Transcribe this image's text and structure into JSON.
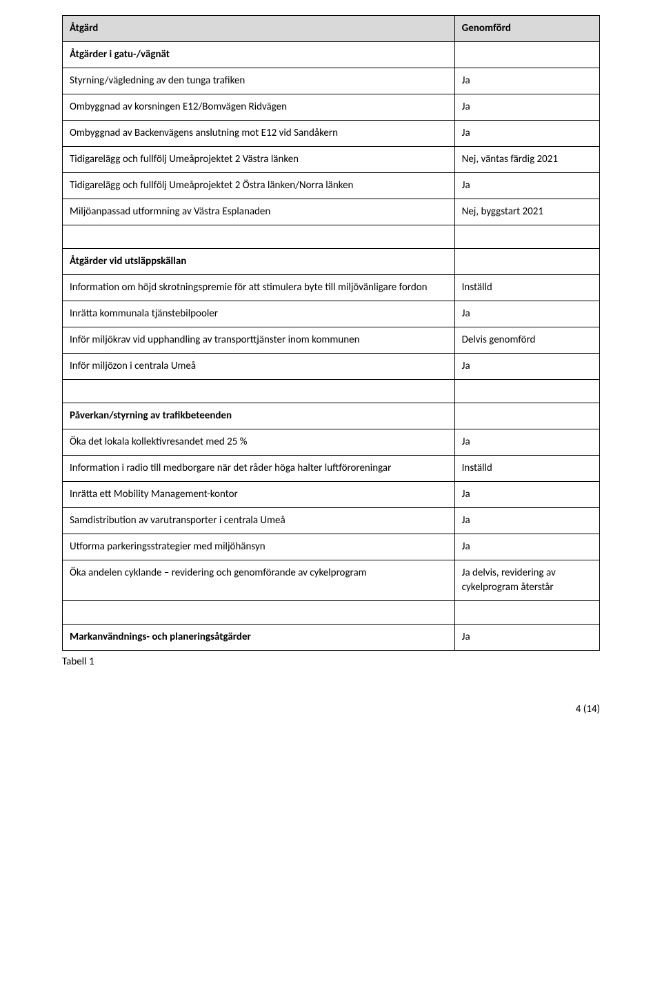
{
  "header": {
    "col1": "Åtgärd",
    "col2": "Genomförd"
  },
  "sections": [
    {
      "title": "Åtgärder i gatu-/vägnät",
      "rows": [
        {
          "label": "Styrning/vägledning av den tunga trafiken",
          "status": "Ja"
        },
        {
          "label": "Ombyggnad av korsningen E12/Bomvägen Ridvägen",
          "status": "Ja"
        },
        {
          "label": "Ombyggnad av Backenvägens anslutning mot E12 vid Sandåkern",
          "status": "Ja"
        },
        {
          "label": "Tidigarelägg och fullfölj Umeåprojektet 2 Västra länken",
          "status": "Nej, väntas färdig 2021"
        },
        {
          "label": "Tidigarelägg och fullfölj Umeåprojektet 2 Östra länken/Norra länken",
          "status": "Ja"
        },
        {
          "label": "Miljöanpassad utformning av Västra Esplanaden",
          "status": "Nej, byggstart 2021"
        }
      ]
    },
    {
      "title": "Åtgärder vid utsläppskällan",
      "rows": [
        {
          "label": "Information om höjd skrotningspremie för att stimulera byte till miljövänligare fordon",
          "status": "Inställd"
        },
        {
          "label": "Inrätta kommunala tjänstebilpooler",
          "status": "Ja"
        },
        {
          "label": "Inför miljökrav vid upphandling av transporttjänster inom kommunen",
          "status": "Delvis genomförd"
        },
        {
          "label": "Inför miljözon i centrala Umeå",
          "status": "Ja"
        }
      ]
    },
    {
      "title": "Påverkan/styrning av trafikbeteenden",
      "rows": [
        {
          "label": "Öka det lokala kollektivresandet med 25 %",
          "status": "Ja"
        },
        {
          "label": "Information i radio till medborgare när det råder höga halter luftföroreningar",
          "status": "Inställd"
        },
        {
          "label": "Inrätta ett Mobility Management-kontor",
          "status": "Ja"
        },
        {
          "label": "Samdistribution av varutransporter i centrala Umeå",
          "status": "Ja"
        },
        {
          "label": "Utforma parkeringsstrategier med miljöhänsyn",
          "status": "Ja"
        },
        {
          "label": "Öka andelen cyklande – revidering och genomförande av cykelprogram",
          "status": "Ja delvis, revidering av cykelprogram återstår"
        }
      ]
    },
    {
      "title": "Markanvändnings- och planeringsåtgärder",
      "title_status": "Ja",
      "rows": []
    }
  ],
  "caption": "Tabell 1",
  "page_number": "4 (14)"
}
